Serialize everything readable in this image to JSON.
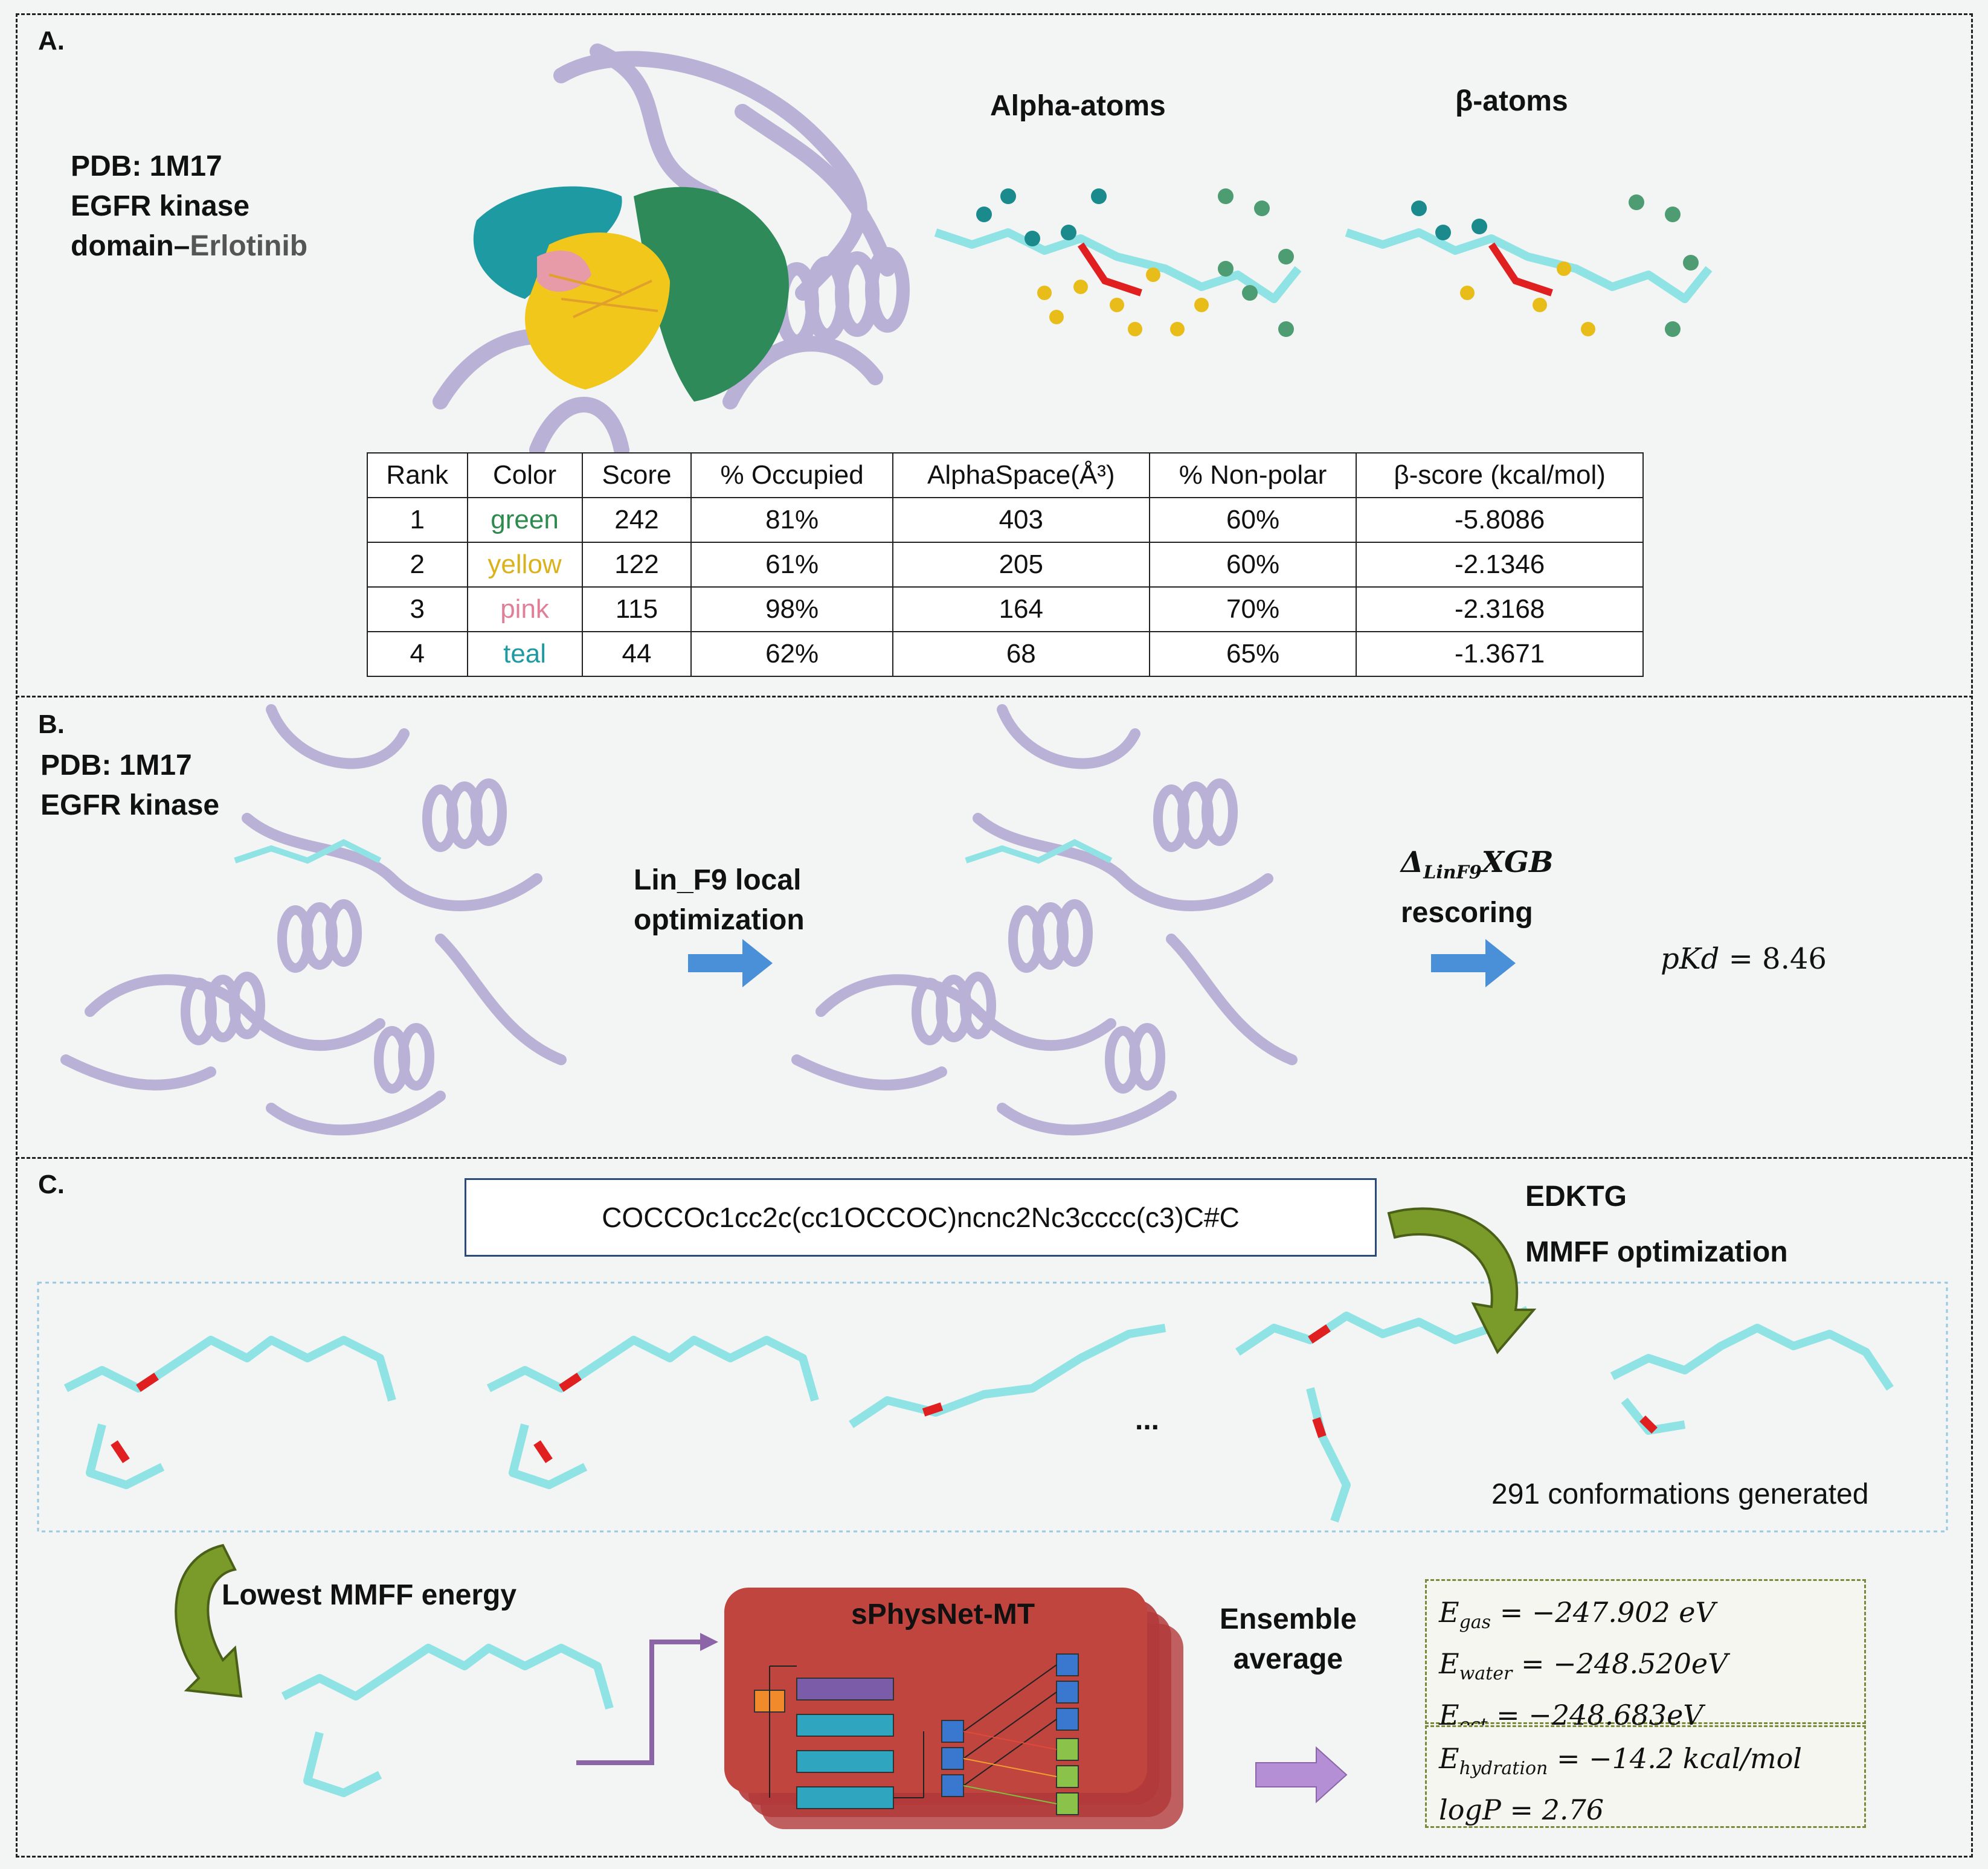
{
  "panelA": {
    "label": "A.",
    "pdb_lines": [
      "PDB: 1M17",
      "EGFR kinase",
      "domain–"
    ],
    "ligand_name": "Erlotinib",
    "alpha_title": "Alpha-atoms",
    "beta_title": "β-atoms",
    "table": {
      "headers": [
        "Rank",
        "Color",
        "Score",
        "% Occupied",
        "AlphaSpace(Å³)",
        "% Non-polar",
        "β-score (kcal/mol)"
      ],
      "rows": [
        [
          "1",
          "green",
          "242",
          "81%",
          "403",
          "60%",
          "-5.8086"
        ],
        [
          "2",
          "yellow",
          "122",
          "61%",
          "205",
          "60%",
          "-2.1346"
        ],
        [
          "3",
          "pink",
          "115",
          "98%",
          "164",
          "70%",
          "-2.3168"
        ],
        [
          "4",
          "teal",
          "44",
          "62%",
          "68",
          "65%",
          "-1.3671"
        ]
      ],
      "color_hex": [
        "#2e8a4e",
        "#d9b21c",
        "#e07f97",
        "#1f9aa3"
      ]
    }
  },
  "panelB": {
    "label": "B.",
    "pdb_lines": [
      "PDB: 1M17",
      "EGFR kinase"
    ],
    "step1_lines": [
      "Lin_F9 local",
      "optimization"
    ],
    "step2_delta": "Δ",
    "step2_sub": "LinF9",
    "step2_tail": "XGB",
    "step2_line2": "rescoring",
    "result_lhs": "pKd",
    "result_rhs": "= 8.46"
  },
  "panelC": {
    "label": "C.",
    "smiles": "COCCOc1cc2c(cc1OCCOC)ncnc2Nc3cccc(c3)C#C",
    "edktg": "EDKTG",
    "mmff_opt": "MMFF optimization",
    "ellipsis": "...",
    "conformations": "291 conformations generated",
    "lowest": "Lowest MMFF energy",
    "network": "sPhysNet-MT",
    "ensemble_lines": [
      "Ensemble",
      "average"
    ],
    "energies": [
      {
        "sym": "E",
        "sub": "gas",
        "val": "= −247.902 eV"
      },
      {
        "sym": "E",
        "sub": "water",
        "val": "= −248.520eV"
      },
      {
        "sym": "E",
        "sub": "oct",
        "val": "= −248.683eV"
      }
    ],
    "props": [
      {
        "sym": "E",
        "sub": "hydration",
        "val": "= −14.2 kcal/mol"
      },
      {
        "sym": "logP",
        "sub": "",
        "val": "= 2.76"
      }
    ]
  }
}
